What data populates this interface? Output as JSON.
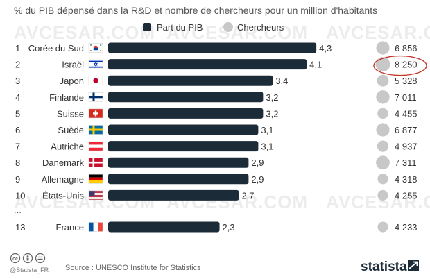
{
  "chart_data": {
    "type": "bar",
    "title": "% du PIB dépensé dans la R&D et nombre de chercheurs pour un million d'habitants",
    "legend": [
      {
        "label": "Part du PIB",
        "color": "#1c2b38"
      },
      {
        "label": "Chercheurs",
        "color": "#c8c8c8"
      }
    ],
    "ellipsis": "...",
    "rows": [
      {
        "rank": "1",
        "country": "Corée du Sud",
        "flag": "south-korea-flag",
        "gdp_share": 4.3,
        "gdp_label": "4,3",
        "researchers": 6856,
        "researchers_label": "6 856"
      },
      {
        "rank": "2",
        "country": "Israël",
        "flag": "israel-flag",
        "gdp_share": 4.1,
        "gdp_label": "4,1",
        "researchers": 8250,
        "researchers_label": "8 250"
      },
      {
        "rank": "3",
        "country": "Japon",
        "flag": "japan-flag",
        "gdp_share": 3.4,
        "gdp_label": "3,4",
        "researchers": 5328,
        "researchers_label": "5 328"
      },
      {
        "rank": "4",
        "country": "Finlande",
        "flag": "finland-flag",
        "gdp_share": 3.2,
        "gdp_label": "3,2",
        "researchers": 7011,
        "researchers_label": "7 011"
      },
      {
        "rank": "5",
        "country": "Suisse",
        "flag": "switzerland-flag",
        "gdp_share": 3.2,
        "gdp_label": "3,2",
        "researchers": 4455,
        "researchers_label": "4 455"
      },
      {
        "rank": "6",
        "country": "Suède",
        "flag": "sweden-flag",
        "gdp_share": 3.1,
        "gdp_label": "3,1",
        "researchers": 6877,
        "researchers_label": "6 877"
      },
      {
        "rank": "7",
        "country": "Autriche",
        "flag": "austria-flag",
        "gdp_share": 3.1,
        "gdp_label": "3,1",
        "researchers": 4937,
        "researchers_label": "4 937"
      },
      {
        "rank": "8",
        "country": "Danemark",
        "flag": "denmark-flag",
        "gdp_share": 2.9,
        "gdp_label": "2,9",
        "researchers": 7311,
        "researchers_label": "7 311"
      },
      {
        "rank": "9",
        "country": "Allemagne",
        "flag": "germany-flag",
        "gdp_share": 2.9,
        "gdp_label": "2,9",
        "researchers": 4318,
        "researchers_label": "4 318"
      },
      {
        "rank": "10",
        "country": "États-Unis",
        "flag": "usa-flag",
        "gdp_share": 2.7,
        "gdp_label": "2,7",
        "researchers": 4255,
        "researchers_label": "4 255"
      },
      {
        "rank": "13",
        "country": "France",
        "flag": "france-flag",
        "gdp_share": 2.3,
        "gdp_label": "2,3",
        "researchers": 4233,
        "researchers_label": "4 233"
      }
    ],
    "highlight_row": 1,
    "highlight_color": "#c0392b"
  },
  "watermark": "AVCESAR.COM",
  "footer": {
    "handle": "@Statista_FR",
    "source": "Source : UNESCO Institute for Statistics",
    "brand": "statista"
  }
}
